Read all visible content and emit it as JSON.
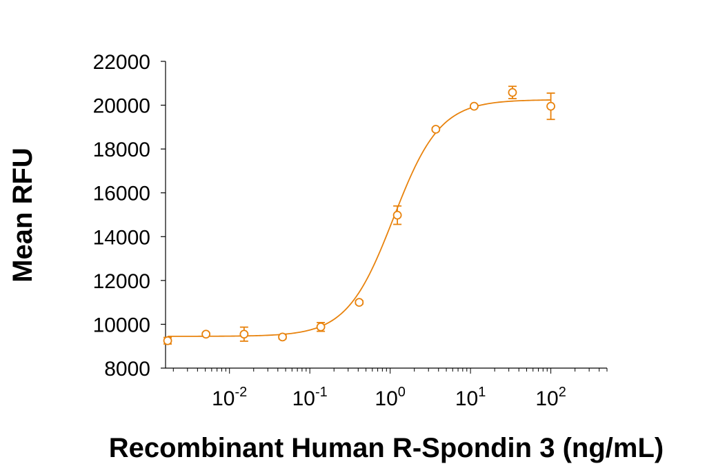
{
  "chart_data": {
    "type": "scatter",
    "title": "",
    "xlabel": "Recombinant Human R-Spondin 3 (ng/mL)",
    "ylabel": "Mean RFU",
    "x_scale": "log",
    "xlim": [
      0.0016,
      500
    ],
    "ylim": [
      8000,
      22000
    ],
    "y_ticks": [
      8000,
      10000,
      12000,
      14000,
      16000,
      18000,
      20000,
      22000
    ],
    "x_tick_labels": [
      {
        "value": 0.01,
        "base": "10",
        "exp": "-2"
      },
      {
        "value": 0.1,
        "base": "10",
        "exp": "-1"
      },
      {
        "value": 1,
        "base": "10",
        "exp": "0"
      },
      {
        "value": 10,
        "base": "10",
        "exp": "1"
      },
      {
        "value": 100,
        "base": "10",
        "exp": "2"
      }
    ],
    "grid": false,
    "color": "#E8820C",
    "series": [
      {
        "x": [
          0.0017,
          0.0051,
          0.0152,
          0.0457,
          0.137,
          0.412,
          1.23,
          3.7,
          11.1,
          33.3,
          100
        ],
        "y": [
          9250,
          9550,
          9550,
          9420,
          9880,
          11000,
          14980,
          18900,
          19950,
          20580,
          19950
        ],
        "error": [
          150,
          60,
          320,
          80,
          200,
          80,
          420,
          70,
          60,
          280,
          600
        ]
      }
    ],
    "fit": {
      "model": "4PL",
      "bottom": 9450,
      "top": 20250,
      "ec50": 1.1,
      "hill": 1.5
    }
  }
}
